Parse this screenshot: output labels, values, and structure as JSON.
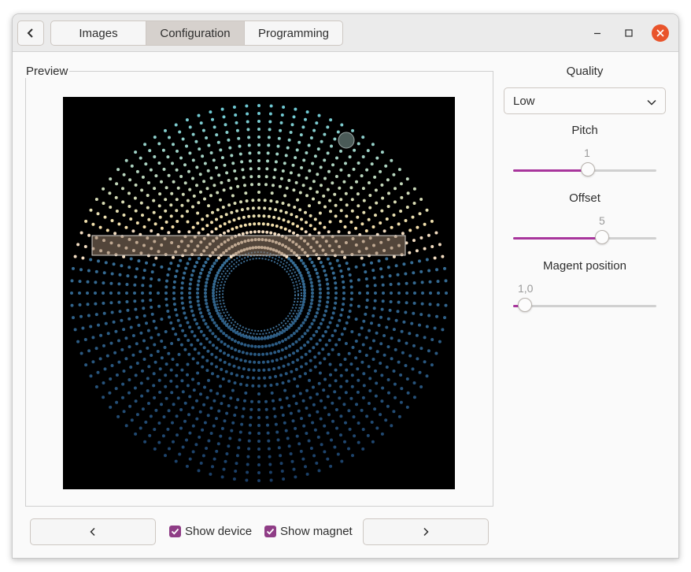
{
  "header": {
    "tabs": [
      {
        "label": "Images",
        "active": false
      },
      {
        "label": "Configuration",
        "active": true
      },
      {
        "label": "Programming",
        "active": false
      }
    ]
  },
  "preview": {
    "label": "Preview"
  },
  "settings": {
    "quality": {
      "label": "Quality",
      "value": "Low"
    },
    "pitch": {
      "label": "Pitch",
      "value_text": "1",
      "fraction": 0.52
    },
    "offset": {
      "label": "Offset",
      "value_text": "5",
      "fraction": 0.62
    },
    "magnet_position": {
      "label": "Magent position",
      "value_text": "1,0",
      "fraction": 0.08
    }
  },
  "footer": {
    "show_device": {
      "label": "Show device",
      "checked": true
    },
    "show_magnet": {
      "label": "Show magnet",
      "checked": true
    }
  },
  "colors": {
    "accent": "#a8359c",
    "checkbox": "#8f3d86",
    "close_button": "#e9542b"
  }
}
